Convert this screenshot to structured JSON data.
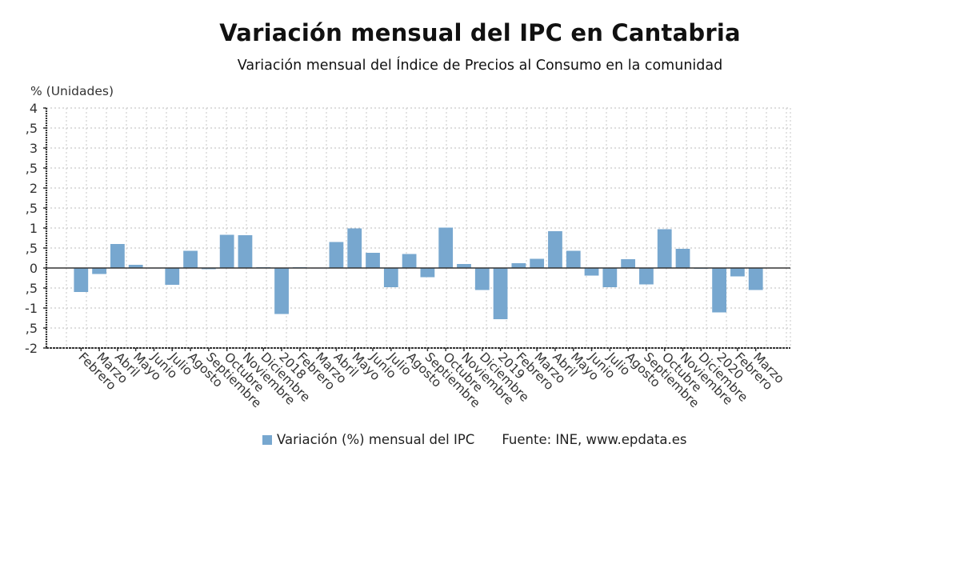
{
  "chart_data": {
    "type": "bar",
    "title": "Variación mensual del IPC en Cantabria",
    "subtitle": "Variación mensual del Índice de Precios al Consumo en la comunidad",
    "xlabel": "",
    "ylabel": "% (Unidades)",
    "ylim": [
      -2,
      4
    ],
    "yticks": [
      4,
      3.5,
      3,
      2.5,
      2,
      1.5,
      1,
      0.5,
      0,
      -0.5,
      -1,
      -1.5,
      -2
    ],
    "ytick_labels": [
      "4",
      ",5",
      "3",
      ",5",
      "2",
      ",5",
      "1",
      ",5",
      "0",
      ",5",
      "-1",
      ",5",
      "-2"
    ],
    "grid": true,
    "legend_position": "bottom",
    "categories": [
      "Febrero",
      "Marzo",
      "Abril",
      "Mayo",
      "Junio",
      "Julio",
      "Agosto",
      "Septiembre",
      "Octubre",
      "Noviembre",
      "Diciembre",
      "2018",
      "Febrero",
      "Marzo",
      "Abril",
      "Mayo",
      "Junio",
      "Julio",
      "Agosto",
      "Septiembre",
      "Octubre",
      "Noviembre",
      "Diciembre",
      "2019",
      "Febrero",
      "Marzo",
      "Abril",
      "Mayo",
      "Junio",
      "Julio",
      "Agosto",
      "Septiembre",
      "Octubre",
      "Noviembre",
      "Diciembre",
      "2020",
      "Febrero",
      "Marzo"
    ],
    "series": [
      {
        "name": "Variación (%) mensual del IPC",
        "color": "#77a7cf",
        "values": [
          -0.6,
          -0.15,
          0.6,
          0.08,
          0.0,
          -0.42,
          0.43,
          -0.03,
          0.83,
          0.82,
          0.02,
          -1.15,
          0.02,
          -0.01,
          0.65,
          0.99,
          0.38,
          -0.48,
          0.35,
          -0.23,
          1.01,
          0.1,
          -0.55,
          -1.28,
          0.12,
          0.23,
          0.92,
          0.43,
          -0.19,
          -0.48,
          0.22,
          -0.41,
          0.97,
          0.48,
          -0.02,
          -1.11,
          -0.21,
          -0.55
        ]
      }
    ],
    "source": "Fuente: INE, www.epdata.es"
  },
  "legend": {
    "series_label": "Variación (%) mensual del IPC",
    "source_label": "Fuente: INE, www.epdata.es"
  }
}
